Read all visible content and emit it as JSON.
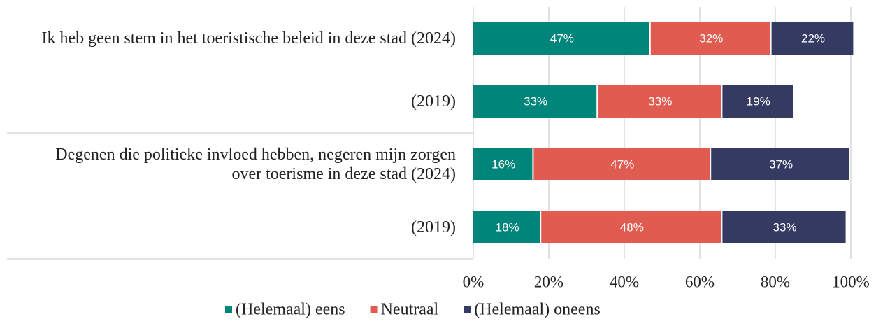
{
  "chart_data": {
    "type": "stacked_bar_horizontal",
    "categories": [
      "Ik heb geen stem in het toeristische beleid in deze stad (2024)",
      "(2019)",
      "Degenen die politieke invloed hebben, negeren mijn zorgen over toerisme in deze stad (2024)",
      "(2019)"
    ],
    "series": [
      {
        "name": "(Helemaal) eens",
        "color": "#00857a",
        "values": [
          47,
          33,
          16,
          18
        ],
        "value_labels": [
          "47%",
          "33%",
          "16%",
          "18%"
        ]
      },
      {
        "name": "Neutraal",
        "color": "#e05c50",
        "values": [
          32,
          33,
          47,
          48
        ],
        "value_labels": [
          "32%",
          "33%",
          "47%",
          "48%"
        ]
      },
      {
        "name": "(Helemaal) oneens",
        "color": "#353a63",
        "values": [
          22,
          19,
          37,
          33
        ],
        "value_labels": [
          "22%",
          "19%",
          "37%",
          "33%"
        ]
      }
    ],
    "xlim": [
      0,
      100
    ],
    "xticks": [
      {
        "value": 0,
        "label": "0%"
      },
      {
        "value": 20,
        "label": "20%"
      },
      {
        "value": 40,
        "label": "40%"
      },
      {
        "value": 60,
        "label": "60%"
      },
      {
        "value": 80,
        "label": "80%"
      },
      {
        "value": 100,
        "label": "100%"
      }
    ],
    "grid": true,
    "legend": "bottom"
  }
}
